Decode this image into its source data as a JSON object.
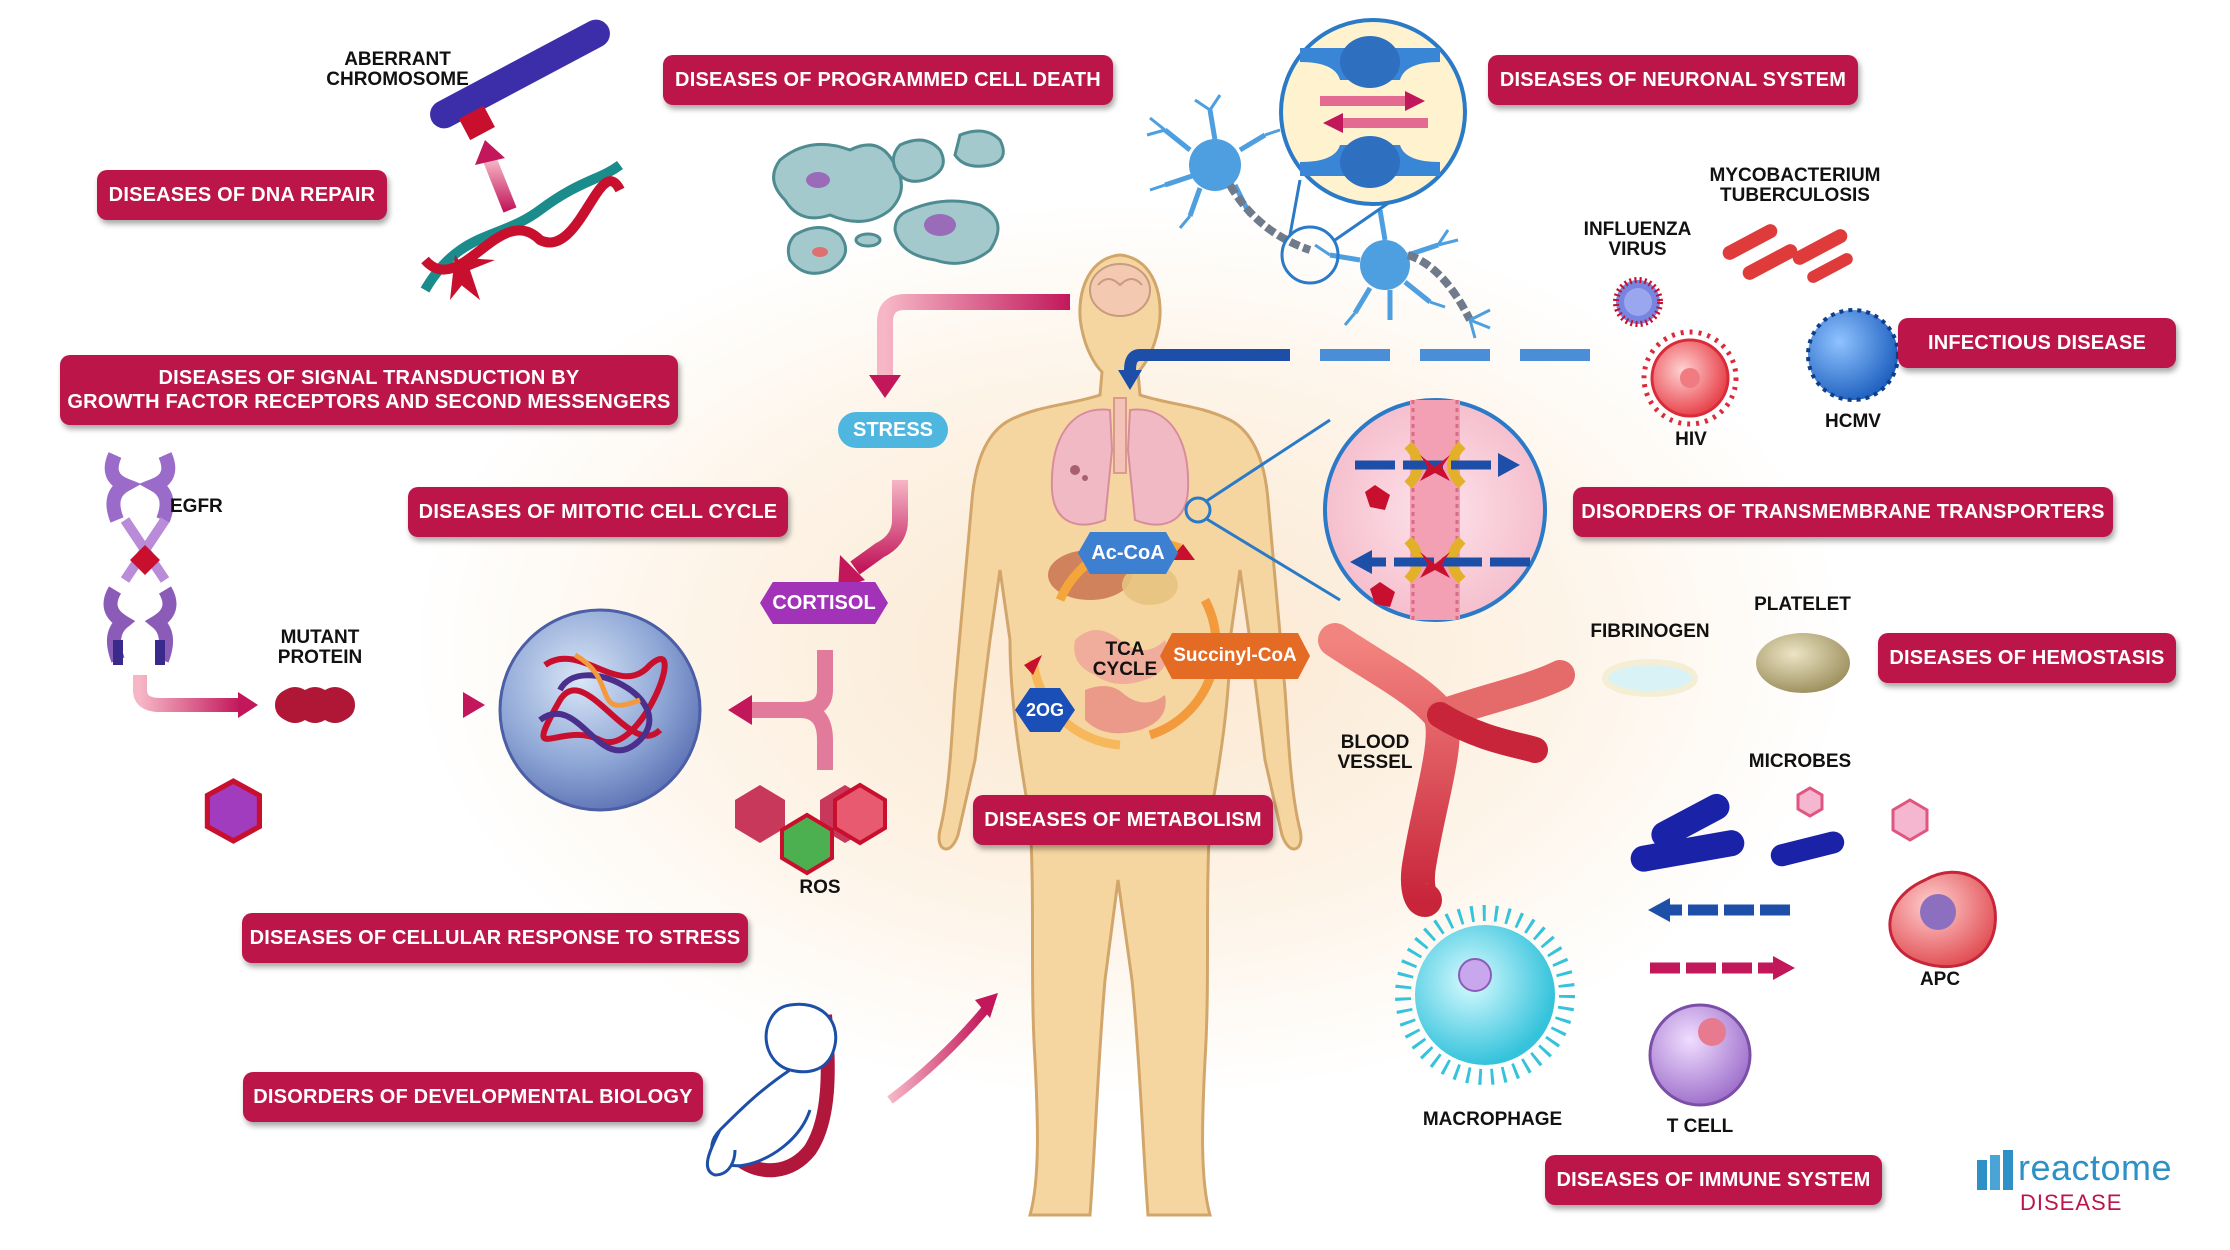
{
  "badges": {
    "dna_repair": "DISEASES OF DNA REPAIR",
    "programmed_cell_death": "DISEASES OF PROGRAMMED CELL DEATH",
    "neuronal_system": "DISEASES OF NEURONAL SYSTEM",
    "infectious_disease": "INFECTIOUS DISEASE",
    "signal_transduction": "DISEASES OF SIGNAL TRANSDUCTION BY\nGROWTH FACTOR RECEPTORS AND SECOND MESSENGERS",
    "mitotic_cell_cycle": "DISEASES OF MITOTIC CELL CYCLE",
    "transmembrane_transporters": "DISORDERS OF TRANSMEMBRANE TRANSPORTERS",
    "hemostasis": "DISEASES OF HEMOSTASIS",
    "metabolism": "DISEASES OF METABOLISM",
    "cellular_response_to_stress": "DISEASES OF CELLULAR RESPONSE TO STRESS",
    "developmental_biology": "DISORDERS OF DEVELOPMENTAL BIOLOGY",
    "immune_system": "DISEASES OF IMMUNE SYSTEM"
  },
  "labels": {
    "aberrant_chromosome": "ABERRANT\nCHROMOSOME",
    "egfr": "EGFR",
    "mutant_protein": "MUTANT\nPROTEIN",
    "ros": "ROS",
    "influenza_virus": "INFLUENZA\nVIRUS",
    "mycobacterium": "MYCOBACTERIUM\nTUBERCULOSIS",
    "hiv": "HIV",
    "hcmv": "HCMV",
    "fibrinogen": "FIBRINOGEN",
    "platelet": "PLATELET",
    "blood_vessel": "BLOOD\nVESSEL",
    "microbes": "MICROBES",
    "apc": "APC",
    "macrophage": "MACROPHAGE",
    "t_cell": "T CELL",
    "tca_cycle": "TCA\nCYCLE"
  },
  "pills": {
    "stress": "STRESS",
    "cortisol": "CORTISOL",
    "ac_coa": "Ac-CoA",
    "succinyl_coa": "Succinyl-CoA",
    "two_og": "2OG"
  },
  "logo": {
    "word": "reactome",
    "sub": "DISEASE"
  },
  "colors": {
    "badge": "#bc1549",
    "logo_blue": "#2d90c6"
  }
}
